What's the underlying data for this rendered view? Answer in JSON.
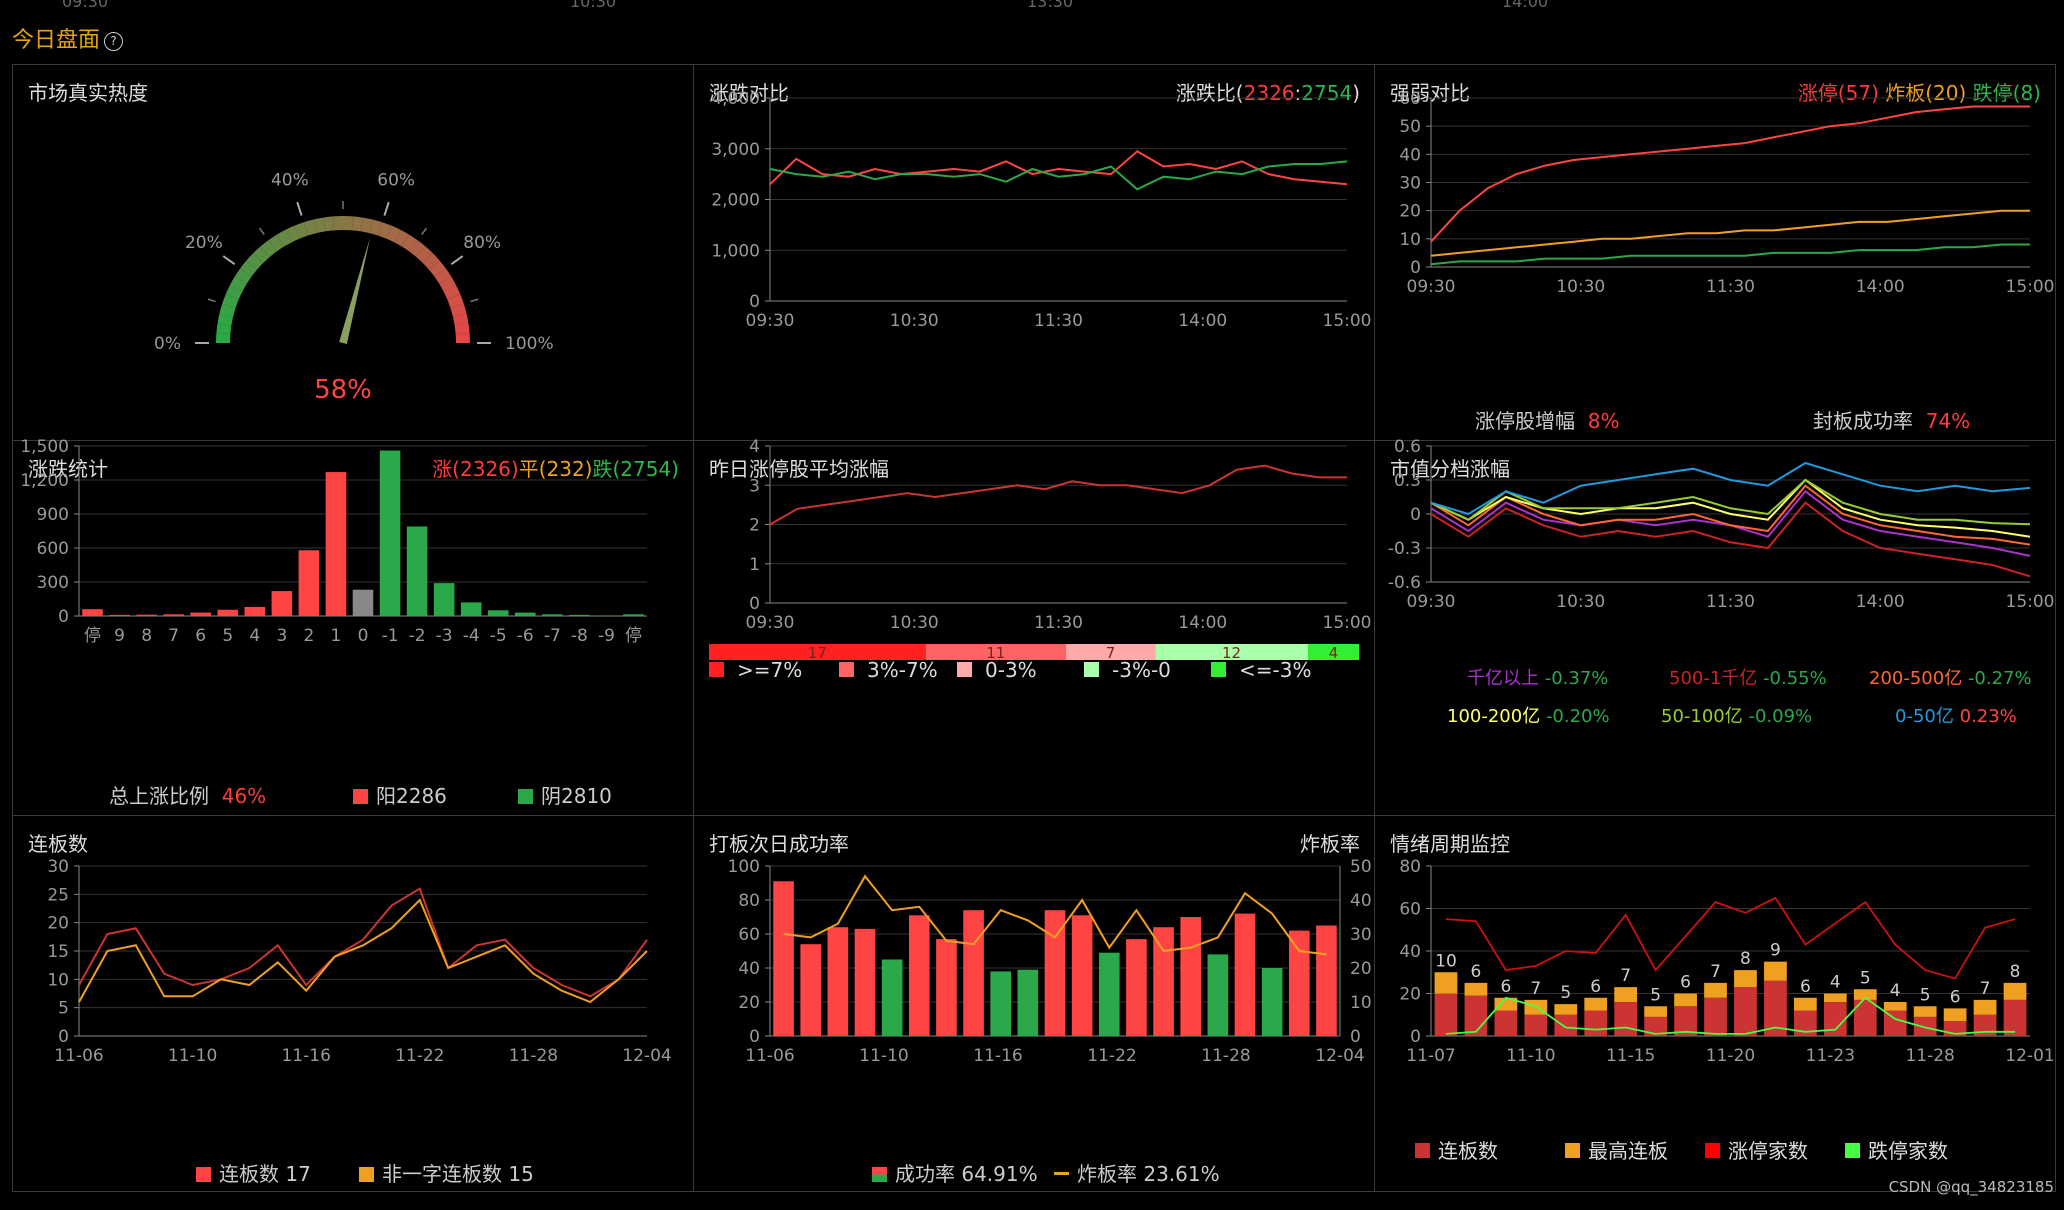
{
  "page": {
    "title": "今日盘面",
    "help_icon": "?",
    "top_ticks": [
      "09:30",
      "10:30",
      "13:30",
      "14:00"
    ],
    "watermark": "CSDN @qq_34823185"
  },
  "colors": {
    "red": "#ff4444",
    "green": "#2aa84a",
    "orange": "#f0a020",
    "gray": "#888888"
  },
  "heat": {
    "title": "市场真实热度",
    "value_text": "58%",
    "chart_data": {
      "type": "gauge",
      "value": 58,
      "range": [
        0,
        100
      ],
      "ticks": [
        "0%",
        "20%",
        "40%",
        "60%",
        "80%",
        "100%"
      ]
    }
  },
  "updown": {
    "title": "涨跌对比",
    "ratio_label": "涨跌比(",
    "ratio_up": "2326",
    "ratio_sep": ":",
    "ratio_down": "2754",
    "ratio_close": ")",
    "chart_data": {
      "type": "line",
      "x_ticks": [
        "09:30",
        "10:30",
        "11:30",
        "14:00",
        "15:00"
      ],
      "y_ticks": [
        "0",
        "1,000",
        "2,000",
        "3,000",
        "4,000"
      ],
      "ylim": [
        0,
        4000
      ],
      "series": [
        {
          "color": "#ff4444",
          "values": [
            2300,
            2800,
            2500,
            2450,
            2600,
            2500,
            2550,
            2600,
            2550,
            2750,
            2500,
            2600,
            2550,
            2500,
            2950,
            2650,
            2700,
            2600,
            2750,
            2500,
            2400,
            2350,
            2300
          ]
        },
        {
          "color": "#2aa84a",
          "values": [
            2600,
            2500,
            2450,
            2550,
            2400,
            2500,
            2500,
            2450,
            2500,
            2350,
            2600,
            2450,
            2500,
            2650,
            2200,
            2450,
            2400,
            2550,
            2500,
            2650,
            2700,
            2700,
            2750
          ]
        }
      ]
    }
  },
  "strength": {
    "title": "强弱对比",
    "limit_up": "涨停(57)",
    "broken": "炸板(20)",
    "limit_down": "跌停(8)",
    "footer_left_label": "涨停股增幅",
    "footer_left_value": "8%",
    "footer_right_label": "封板成功率",
    "footer_right_value": "74%",
    "chart_data": {
      "type": "line",
      "x_ticks": [
        "09:30",
        "10:30",
        "11:30",
        "14:00",
        "15:00"
      ],
      "y_ticks": [
        "0",
        "10",
        "20",
        "30",
        "40",
        "50",
        "60"
      ],
      "ylim": [
        0,
        60
      ],
      "series": [
        {
          "color": "#ff4444",
          "values": [
            9,
            20,
            28,
            33,
            36,
            38,
            39,
            40,
            41,
            42,
            43,
            44,
            46,
            48,
            50,
            51,
            53,
            55,
            56,
            57,
            57,
            57
          ]
        },
        {
          "color": "#f0a020",
          "values": [
            4,
            5,
            6,
            7,
            8,
            9,
            10,
            10,
            11,
            12,
            12,
            13,
            13,
            14,
            15,
            16,
            16,
            17,
            18,
            19,
            20,
            20
          ]
        },
        {
          "color": "#2aa84a",
          "values": [
            1,
            2,
            2,
            2,
            3,
            3,
            3,
            4,
            4,
            4,
            4,
            4,
            5,
            5,
            5,
            6,
            6,
            6,
            7,
            7,
            8,
            8
          ]
        }
      ]
    }
  },
  "stats": {
    "title": "涨跌统计",
    "up_label": "涨(2326)",
    "flat_label": "平(232)",
    "down_label": "跌(2754)",
    "ratio_label": "总上涨比例",
    "ratio_value": "46%",
    "yang": "阳2286",
    "yin": "阴2810",
    "chart_data": {
      "type": "bar",
      "categories": [
        "停",
        "9",
        "8",
        "7",
        "6",
        "5",
        "4",
        "3",
        "2",
        "1",
        "0",
        "-1",
        "-2",
        "-3",
        "-4",
        "-5",
        "-6",
        "-7",
        "-8",
        "-9",
        "停"
      ],
      "values": [
        60,
        10,
        12,
        15,
        30,
        55,
        80,
        220,
        580,
        1270,
        232,
        1460,
        790,
        290,
        120,
        50,
        30,
        15,
        10,
        5,
        15
      ],
      "y_ticks": [
        "0",
        "300",
        "600",
        "900",
        "1,200",
        "1,500"
      ],
      "ylim": [
        0,
        1500
      ]
    }
  },
  "yesterday": {
    "title": "昨日涨停股平均涨幅",
    "chart_data": {
      "type": "line",
      "x_ticks": [
        "09:30",
        "10:30",
        "11:30",
        "14:00",
        "15:00"
      ],
      "y_ticks": [
        "0",
        "1",
        "2",
        "3",
        "4"
      ],
      "ylim": [
        0,
        4
      ],
      "series": [
        {
          "color": "#cc3333",
          "values": [
            2.0,
            2.4,
            2.5,
            2.6,
            2.7,
            2.8,
            2.7,
            2.8,
            2.9,
            3.0,
            2.9,
            3.1,
            3.0,
            3.0,
            2.9,
            2.8,
            3.0,
            3.4,
            3.5,
            3.3,
            3.2,
            3.2
          ]
        }
      ]
    },
    "dist": [
      {
        "label": "17",
        "value": 17,
        "color": "#ff2020"
      },
      {
        "label": "11",
        "value": 11,
        "color": "#ff6464"
      },
      {
        "label": "7",
        "value": 7,
        "color": "#ffaaaa"
      },
      {
        "label": "12",
        "value": 12,
        "color": "#aaffaa"
      },
      {
        "label": "4",
        "value": 4,
        "color": "#33ee33"
      }
    ],
    "legend": [
      {
        "label": ">=7%",
        "color": "#ff2020"
      },
      {
        "label": "3%-7%",
        "color": "#ff6464"
      },
      {
        "label": "0-3%",
        "color": "#ffaaaa"
      },
      {
        "label": "-3%-0",
        "color": "#aaffaa"
      },
      {
        "label": "<=-3%",
        "color": "#33ee33"
      }
    ]
  },
  "mcap": {
    "title": "市值分档涨幅",
    "chart_data": {
      "type": "line",
      "x_ticks": [
        "09:30",
        "10:30",
        "11:30",
        "14:00",
        "15:00"
      ],
      "y_ticks": [
        "-0.6",
        "-0.3",
        "0",
        "0.3",
        "0.6"
      ],
      "ylim": [
        -0.6,
        0.6
      ],
      "series": [
        {
          "name": "千亿以上",
          "color": "#aa33cc",
          "values": [
            0.05,
            -0.15,
            0.1,
            -0.05,
            -0.1,
            -0.05,
            -0.1,
            -0.05,
            -0.1,
            -0.2,
            0.2,
            -0.05,
            -0.15,
            -0.2,
            -0.25,
            -0.3,
            -0.37
          ]
        },
        {
          "name": "500-1千亿",
          "color": "#cc2222",
          "values": [
            0.0,
            -0.2,
            0.05,
            -0.1,
            -0.2,
            -0.15,
            -0.2,
            -0.15,
            -0.25,
            -0.3,
            0.1,
            -0.15,
            -0.3,
            -0.35,
            -0.4,
            -0.45,
            -0.55
          ]
        },
        {
          "name": "200-500亿",
          "color": "#ff6633",
          "values": [
            0.1,
            -0.1,
            0.15,
            0.0,
            -0.1,
            -0.05,
            -0.05,
            0.0,
            -0.1,
            -0.15,
            0.25,
            0.0,
            -0.1,
            -0.15,
            -0.2,
            -0.22,
            -0.27
          ]
        },
        {
          "name": "100-200亿",
          "color": "#ffff66",
          "values": [
            0.1,
            -0.05,
            0.15,
            0.05,
            0.0,
            0.05,
            0.05,
            0.1,
            0.0,
            -0.05,
            0.3,
            0.05,
            -0.05,
            -0.1,
            -0.12,
            -0.15,
            -0.2
          ]
        },
        {
          "name": "50-100亿",
          "color": "#99cc33",
          "values": [
            0.1,
            -0.05,
            0.2,
            0.05,
            0.05,
            0.05,
            0.1,
            0.15,
            0.05,
            0.0,
            0.3,
            0.1,
            0.0,
            -0.05,
            -0.05,
            -0.08,
            -0.09
          ]
        },
        {
          "name": "0-50亿",
          "color": "#2299dd",
          "values": [
            0.1,
            0.0,
            0.2,
            0.1,
            0.25,
            0.3,
            0.35,
            0.4,
            0.3,
            0.25,
            0.45,
            0.35,
            0.25,
            0.2,
            0.25,
            0.2,
            0.23
          ]
        }
      ]
    },
    "legend": [
      {
        "name": "千亿以上",
        "value": "-0.37%",
        "name_color": "#aa33cc",
        "value_color": "#2aa84a"
      },
      {
        "name": "500-1千亿",
        "value": "-0.55%",
        "name_color": "#cc2222",
        "value_color": "#2aa84a"
      },
      {
        "name": "200-500亿",
        "value": "-0.27%",
        "name_color": "#ff6633",
        "value_color": "#2aa84a"
      },
      {
        "name": "100-200亿",
        "value": "-0.20%",
        "name_color": "#ffff66",
        "value_color": "#2aa84a"
      },
      {
        "name": "50-100亿",
        "value": "-0.09%",
        "name_color": "#99cc33",
        "value_color": "#2aa84a"
      },
      {
        "name": "0-50亿",
        "value": "0.23%",
        "name_color": "#2299dd",
        "value_color": "#ff4444"
      }
    ]
  },
  "lianban": {
    "title": "连板数",
    "legend_a": "连板数 17",
    "legend_b": "非一字连板数 15",
    "chart_data": {
      "type": "line",
      "x_ticks": [
        "11-06",
        "11-10",
        "11-16",
        "11-22",
        "11-28",
        "12-04"
      ],
      "y_ticks": [
        "0",
        "5",
        "10",
        "15",
        "20",
        "25",
        "30"
      ],
      "ylim": [
        0,
        30
      ],
      "series": [
        {
          "color": "#cc3333",
          "values": [
            9,
            18,
            19,
            11,
            9,
            10,
            12,
            16,
            9,
            14,
            17,
            23,
            26,
            12,
            16,
            17,
            12,
            9,
            7,
            10,
            17
          ]
        },
        {
          "color": "#f0a020",
          "values": [
            6,
            15,
            16,
            7,
            7,
            10,
            9,
            13,
            8,
            14,
            16,
            19,
            24,
            12,
            14,
            16,
            11,
            8,
            6,
            10,
            15
          ]
        }
      ]
    }
  },
  "daban": {
    "title": "打板次日成功率",
    "right_title": "炸板率",
    "legend_a": "成功率 64.91%",
    "legend_b": "炸板率 23.61%",
    "chart_data": {
      "type": "bar",
      "x_ticks": [
        "11-06",
        "11-10",
        "11-16",
        "11-22",
        "11-28",
        "12-04"
      ],
      "y_ticks": [
        "0",
        "20",
        "40",
        "60",
        "80",
        "100"
      ],
      "y2_ticks": [
        "0",
        "10",
        "20",
        "30",
        "40",
        "50"
      ],
      "ylim": [
        0,
        100
      ],
      "bars": [
        91,
        54,
        64,
        63,
        45,
        71,
        57,
        74,
        38,
        39,
        74,
        71,
        49,
        57,
        64,
        70,
        48,
        72,
        40,
        62,
        65
      ],
      "bar_green": [
        false,
        false,
        false,
        false,
        true,
        false,
        false,
        false,
        true,
        true,
        false,
        false,
        true,
        false,
        false,
        false,
        true,
        false,
        true,
        false,
        false
      ],
      "line": [
        30,
        29,
        33,
        47,
        37,
        38,
        28,
        27,
        37,
        34,
        29,
        40,
        26,
        37,
        25,
        26,
        29,
        42,
        36,
        25,
        24
      ]
    }
  },
  "cycle": {
    "title": "情绪周期监控",
    "legend": [
      {
        "label": "连板数",
        "color": "#cc3333"
      },
      {
        "label": "最高连板",
        "color": "#f0a020"
      },
      {
        "label": "涨停家数",
        "color": "#ff0000"
      },
      {
        "label": "跌停家数",
        "color": "#44ff44"
      }
    ],
    "chart_data": {
      "type": "bar",
      "x_ticks": [
        "11-07",
        "11-10",
        "11-15",
        "11-20",
        "11-23",
        "11-28",
        "12-01"
      ],
      "y_ticks": [
        "0",
        "20",
        "40",
        "60",
        "80"
      ],
      "ylim": [
        0,
        80
      ],
      "lianban": [
        20,
        19,
        12,
        10,
        10,
        12,
        16,
        9,
        14,
        18,
        23,
        26,
        12,
        16,
        17,
        12,
        9,
        7,
        10,
        17
      ],
      "max_board": [
        10,
        6,
        6,
        7,
        5,
        6,
        7,
        5,
        6,
        7,
        8,
        9,
        6,
        4,
        5,
        4,
        5,
        6,
        7,
        8
      ],
      "zt": [
        55,
        54,
        31,
        33,
        40,
        39,
        57,
        31,
        47,
        63,
        58,
        65,
        43,
        53,
        63,
        43,
        31,
        27,
        51,
        55
      ],
      "dt": [
        1,
        2,
        18,
        14,
        4,
        3,
        4,
        1,
        2,
        1,
        1,
        4,
        2,
        3,
        18,
        8,
        4,
        1,
        2,
        2
      ]
    }
  }
}
